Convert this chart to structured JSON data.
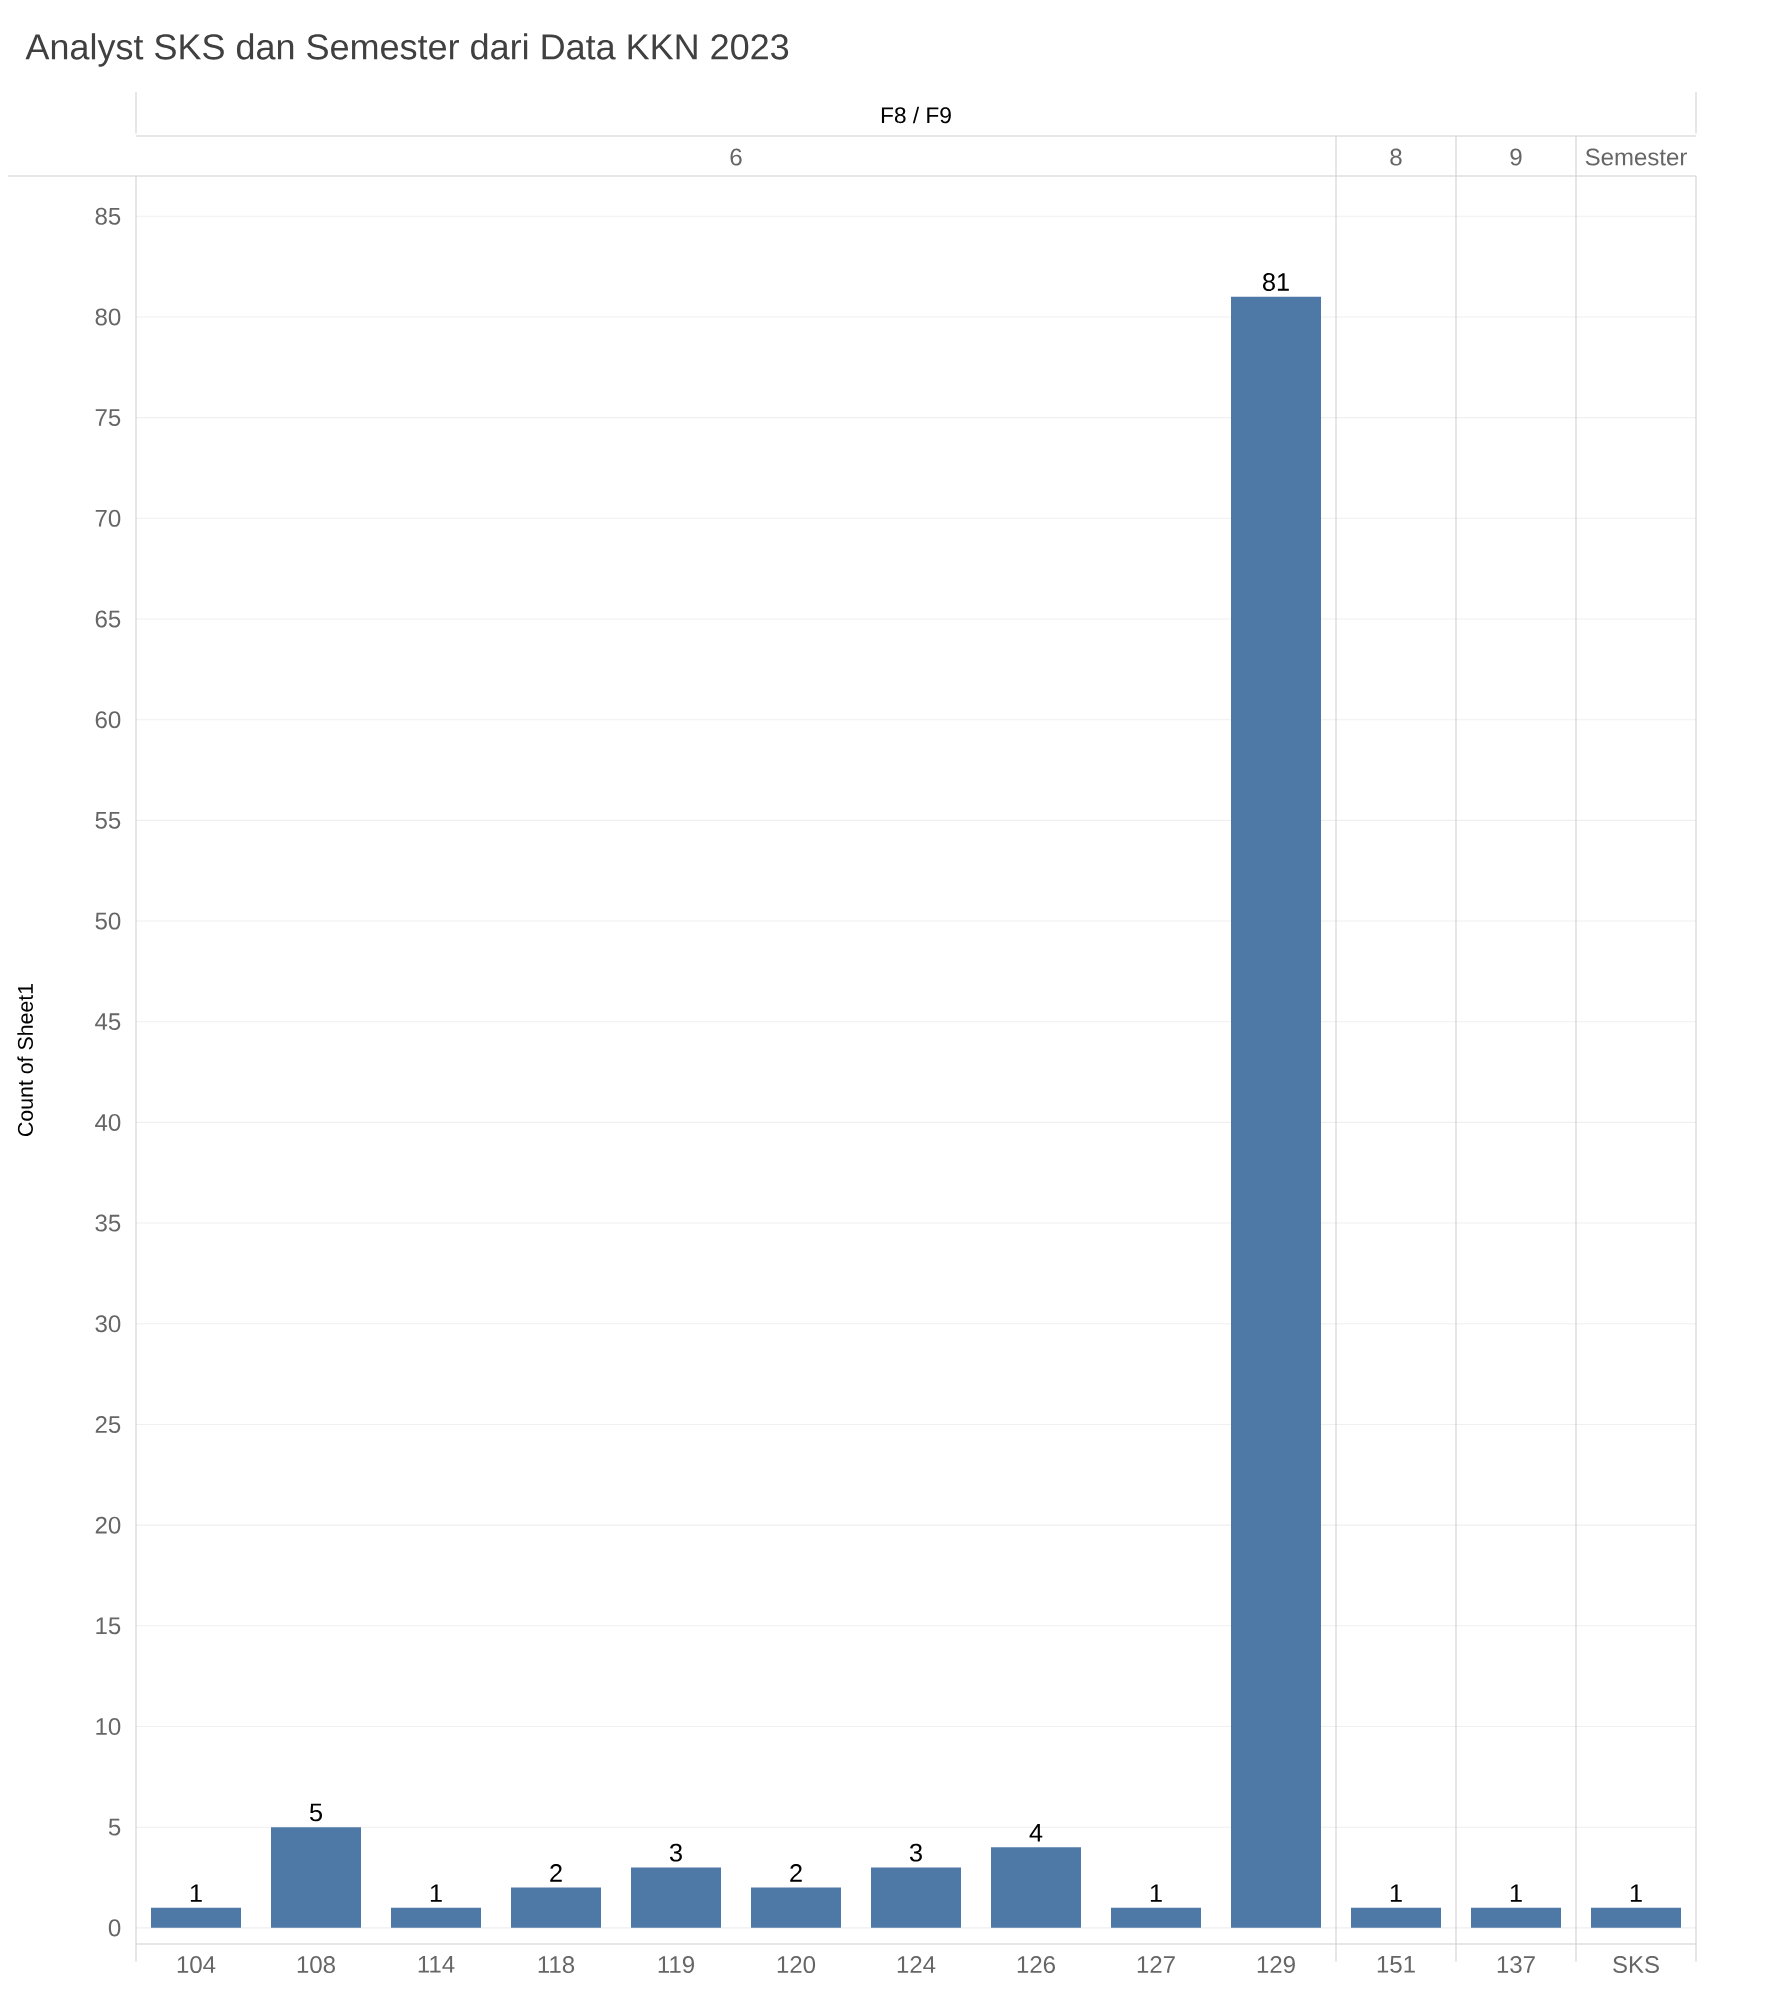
{
  "chart_data": {
    "type": "bar",
    "title": "Analyst SKS dan Semester dari Data KKN 2023",
    "xlabel": "F8 / F9",
    "ylabel": "Count of Sheet1",
    "categories": [
      "104",
      "108",
      "114",
      "118",
      "119",
      "120",
      "124",
      "126",
      "127",
      "129",
      "151",
      "137",
      "SKS"
    ],
    "values": [
      1,
      5,
      1,
      2,
      3,
      2,
      3,
      4,
      1,
      81,
      1,
      1,
      1
    ],
    "color": "#4e79a7",
    "annotations": [
      "6",
      "8",
      "9",
      "Semester"
    ],
    "ylim": [
      -0.8,
      87
    ],
    "yticks": [
      0,
      5,
      10,
      15,
      20,
      25,
      30,
      35,
      40,
      45,
      50,
      55,
      60,
      65,
      70,
      75,
      80,
      85
    ],
    "grid": "y",
    "data_labels": true
  }
}
